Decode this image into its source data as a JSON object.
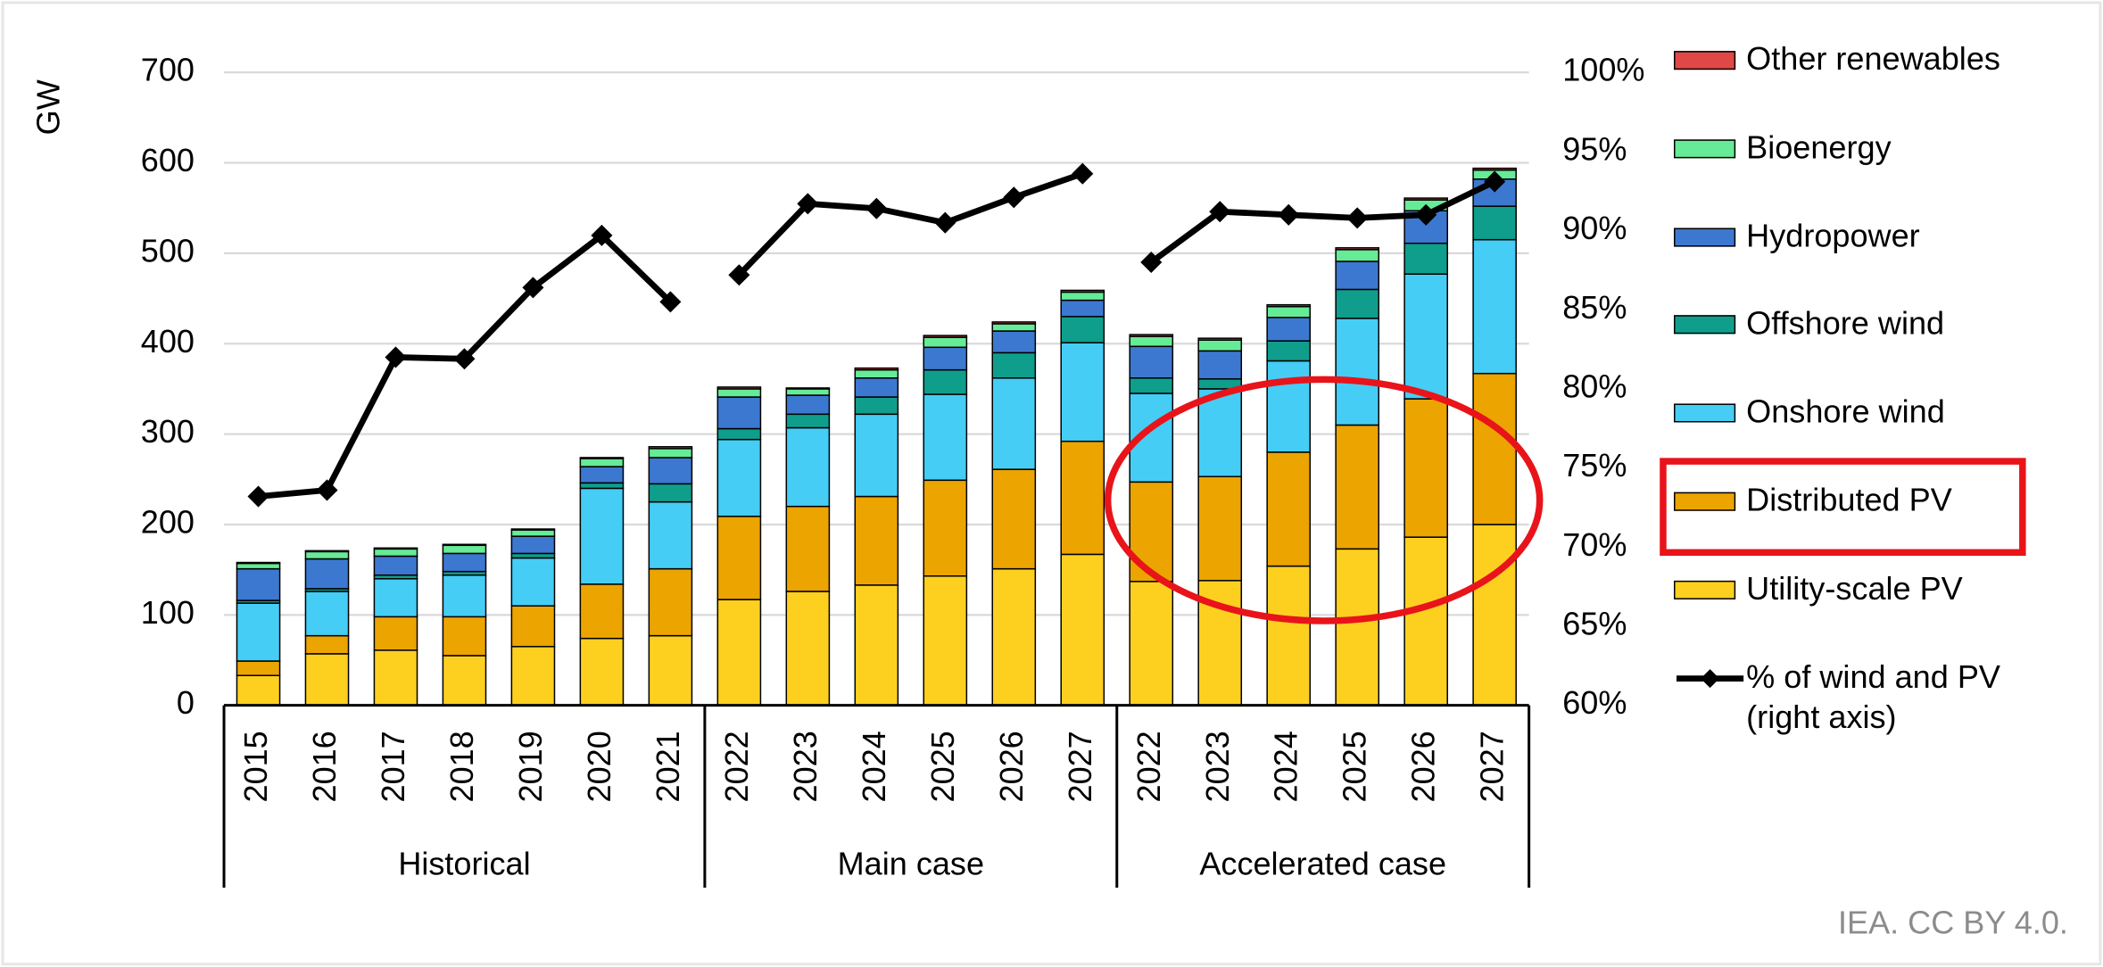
{
  "chart_data": {
    "type": "bar",
    "stacked": true,
    "ylabel": "GW",
    "groups": [
      {
        "name": "Historical",
        "categories": [
          "2015",
          "2016",
          "2017",
          "2018",
          "2019",
          "2020",
          "2021"
        ]
      },
      {
        "name": "Main case",
        "categories": [
          "2022",
          "2023",
          "2024",
          "2025",
          "2026",
          "2027"
        ]
      },
      {
        "name": "Accelerated case",
        "categories": [
          "2022",
          "2023",
          "2024",
          "2025",
          "2026",
          "2027"
        ]
      }
    ],
    "ylim": [
      0,
      700
    ],
    "yticks": [
      0,
      100,
      200,
      300,
      400,
      500,
      600,
      700
    ],
    "y2lim": [
      60,
      100
    ],
    "y2ticks": [
      {
        "value": 60,
        "label": "60%"
      },
      {
        "value": 65,
        "label": "65%"
      },
      {
        "value": 70,
        "label": "70%"
      },
      {
        "value": 75,
        "label": "75%"
      },
      {
        "value": 80,
        "label": "80%"
      },
      {
        "value": 85,
        "label": "85%"
      },
      {
        "value": 90,
        "label": "90%"
      },
      {
        "value": 95,
        "label": "95%"
      },
      {
        "value": 100,
        "label": "100%"
      }
    ],
    "grid": true,
    "series": [
      {
        "name": "Utility-scale PV",
        "color": "#fdd020",
        "values": [
          33,
          57,
          61,
          55,
          65,
          74,
          77,
          117,
          126,
          133,
          143,
          151,
          167,
          137,
          138,
          154,
          173,
          186,
          200
        ]
      },
      {
        "name": "Distributed PV",
        "color": "#eba400",
        "values": [
          16,
          20,
          37,
          43,
          45,
          60,
          74,
          92,
          94,
          98,
          106,
          110,
          125,
          110,
          115,
          126,
          137,
          153,
          167
        ]
      },
      {
        "name": "Onshore wind",
        "color": "#45cdf5",
        "values": [
          64,
          49,
          42,
          46,
          53,
          106,
          74,
          85,
          87,
          91,
          95,
          101,
          109,
          98,
          97,
          101,
          118,
          138,
          148
        ]
      },
      {
        "name": "Offshore wind",
        "color": "#0f9e8c",
        "values": [
          3,
          3,
          4,
          4,
          5,
          6,
          20,
          12,
          15,
          19,
          27,
          28,
          29,
          17,
          11,
          22,
          32,
          34,
          37
        ]
      },
      {
        "name": "Hydropower",
        "color": "#3d78d0",
        "values": [
          35,
          33,
          21,
          20,
          19,
          18,
          29,
          35,
          21,
          21,
          25,
          24,
          18,
          35,
          31,
          26,
          31,
          36,
          30
        ]
      },
      {
        "name": "Bioenergy",
        "color": "#66eb96",
        "values": [
          6,
          8,
          8,
          9,
          7,
          9,
          10,
          9,
          7,
          9,
          11,
          8,
          9,
          11,
          12,
          12,
          13,
          12,
          10
        ]
      },
      {
        "name": "Other renewables",
        "color": "#e04848",
        "values": [
          1,
          1,
          1,
          1,
          1,
          1,
          2,
          2,
          1,
          2,
          2,
          2,
          2,
          2,
          2,
          2,
          2,
          2,
          2
        ]
      },
      {
        "name": "% of wind and PV (right axis)",
        "type": "line",
        "axis": "y2",
        "color": "#000000",
        "values": [
          73.2,
          73.6,
          82.0,
          81.9,
          86.4,
          89.7,
          85.5,
          87.2,
          91.7,
          91.4,
          90.5,
          92.1,
          93.6,
          88.0,
          91.2,
          91.0,
          90.8,
          91.0,
          93.1
        ]
      }
    ],
    "source": "IEA. CC BY 4.0."
  }
}
